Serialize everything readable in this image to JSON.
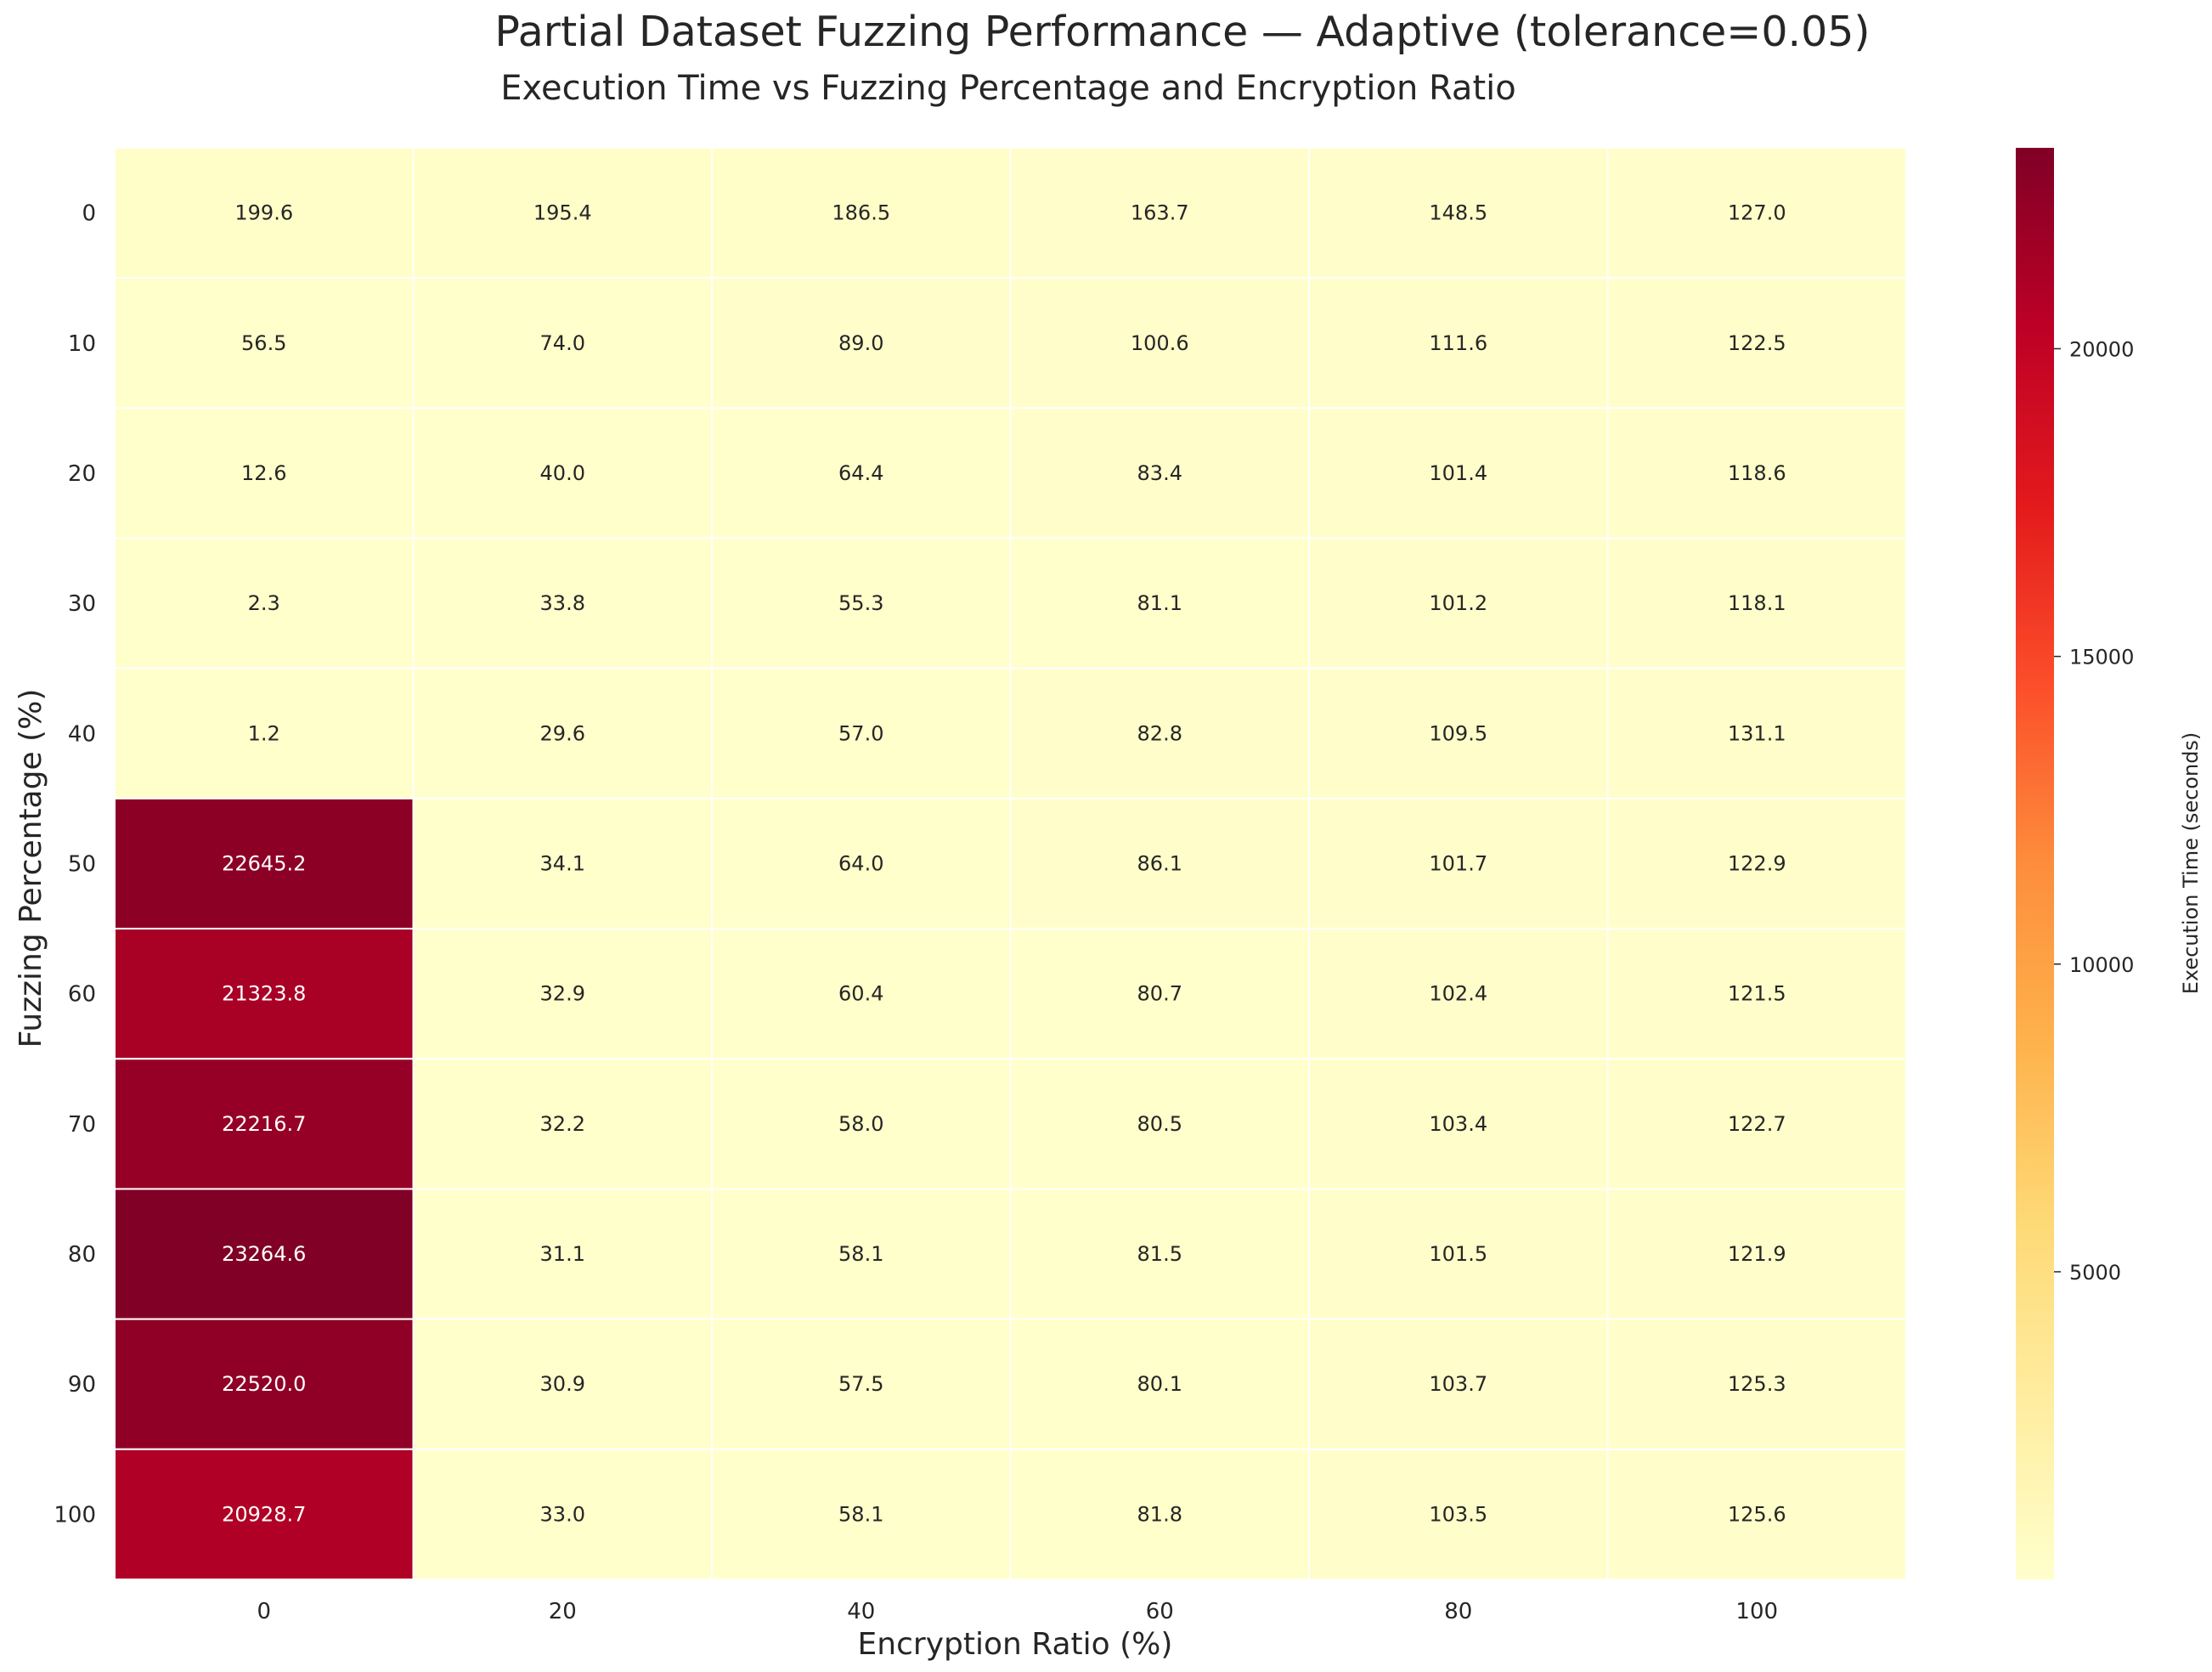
{
  "chart_data": {
    "type": "heatmap",
    "title": "Partial Dataset Fuzzing Performance — Adaptive (tolerance=0.05)",
    "subtitle": "Execution Time vs Fuzzing Percentage and Encryption Ratio",
    "xlabel": "Encryption Ratio (%)",
    "ylabel": "Fuzzing Percentage (%)",
    "x_categories": [
      "0",
      "20",
      "40",
      "60",
      "80",
      "100"
    ],
    "y_categories": [
      "0",
      "10",
      "20",
      "30",
      "40",
      "50",
      "60",
      "70",
      "80",
      "90",
      "100"
    ],
    "values": [
      [
        199.6,
        195.4,
        186.5,
        163.7,
        148.5,
        127.0
      ],
      [
        56.5,
        74.0,
        89.0,
        100.6,
        111.6,
        122.5
      ],
      [
        12.6,
        40.0,
        64.4,
        83.4,
        101.4,
        118.6
      ],
      [
        2.3,
        33.8,
        55.3,
        81.1,
        101.2,
        118.1
      ],
      [
        1.2,
        29.6,
        57.0,
        82.8,
        109.5,
        131.1
      ],
      [
        22645.2,
        34.1,
        64.0,
        86.1,
        101.7,
        122.9
      ],
      [
        21323.8,
        32.9,
        60.4,
        80.7,
        102.4,
        121.5
      ],
      [
        22216.7,
        32.2,
        58.0,
        80.5,
        103.4,
        122.7
      ],
      [
        23264.6,
        31.1,
        58.1,
        81.5,
        101.5,
        121.9
      ],
      [
        22520.0,
        30.9,
        57.5,
        80.1,
        103.7,
        125.3
      ],
      [
        20928.7,
        33.0,
        58.1,
        81.8,
        103.5,
        125.6
      ]
    ],
    "value_format": "0.1f",
    "colormap": "YlOrRd",
    "colorbar": {
      "label": "Execution Time (seconds)",
      "range": [
        1.2,
        23264.6
      ],
      "ticks": [
        5000,
        10000,
        15000,
        20000
      ]
    },
    "cell_border_color": "#ffffff",
    "grid": false
  }
}
